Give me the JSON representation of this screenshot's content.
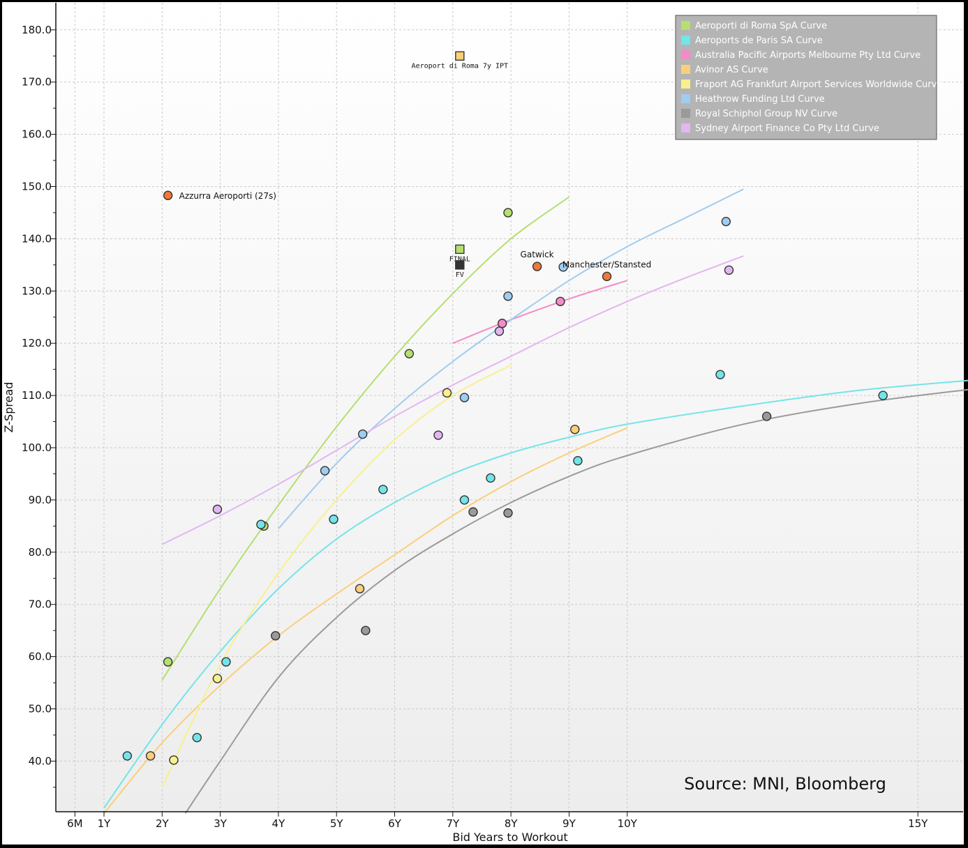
{
  "chart_data": {
    "type": "scatter",
    "xlabel": "Bid Years to Workout",
    "ylabel": "Z-Spread",
    "xlim": [
      0.3,
      16.3
    ],
    "ylim": [
      30.0,
      183.0
    ],
    "x_ticks": [
      {
        "label": "6M",
        "value": 0.5
      },
      {
        "label": "1Y",
        "value": 1
      },
      {
        "label": "2Y",
        "value": 2
      },
      {
        "label": "3Y",
        "value": 3
      },
      {
        "label": "4Y",
        "value": 4
      },
      {
        "label": "5Y",
        "value": 5
      },
      {
        "label": "6Y",
        "value": 6
      },
      {
        "label": "7Y",
        "value": 7
      },
      {
        "label": "8Y",
        "value": 8
      },
      {
        "label": "9Y",
        "value": 9
      },
      {
        "label": "10Y",
        "value": 10
      },
      {
        "label": "15Y",
        "value": 15
      }
    ],
    "y_ticks": [
      "40.0",
      "50.0",
      "60.0",
      "70.0",
      "80.0",
      "90.0",
      "100.0",
      "110.0",
      "120.0",
      "130.0",
      "140.0",
      "150.0",
      "160.0",
      "170.0",
      "180.0"
    ],
    "grid": true,
    "legend_position": "top-right",
    "series": [
      {
        "name": "Aeroporti di Roma SpA Curve",
        "color": "#b5df6e",
        "points": [
          [
            2.1,
            59
          ],
          [
            3.75,
            85
          ],
          [
            6.25,
            118
          ],
          [
            7.95,
            145
          ]
        ],
        "curve": [
          [
            2.0,
            55.5
          ],
          [
            3.0,
            73
          ],
          [
            4.0,
            89
          ],
          [
            5.0,
            104
          ],
          [
            6.0,
            117.5
          ],
          [
            7.0,
            129.5
          ],
          [
            8.0,
            140
          ],
          [
            9.0,
            148
          ]
        ]
      },
      {
        "name": "Aeroports de Paris SA Curve",
        "color": "#74e4e8",
        "points": [
          [
            1.4,
            41
          ],
          [
            2.6,
            44.5
          ],
          [
            3.1,
            59
          ],
          [
            3.7,
            85.3
          ],
          [
            4.95,
            86.3
          ],
          [
            5.8,
            92
          ],
          [
            7.2,
            90
          ],
          [
            7.65,
            94.2
          ],
          [
            9.15,
            97.5
          ],
          [
            11.6,
            114
          ],
          [
            14.4,
            110
          ]
        ],
        "curve": [
          [
            1.0,
            31
          ],
          [
            2.0,
            47
          ],
          [
            3.0,
            61
          ],
          [
            4.0,
            73
          ],
          [
            5.0,
            82.5
          ],
          [
            6.0,
            89.5
          ],
          [
            7.0,
            95
          ],
          [
            8.0,
            99
          ],
          [
            9.0,
            102
          ],
          [
            10.0,
            104.5
          ],
          [
            12.0,
            108
          ],
          [
            14.0,
            111
          ],
          [
            16.0,
            113
          ]
        ]
      },
      {
        "name": "Australia Pacific Airports Melbourne Pty Ltd Curve",
        "color": "#f48ac8",
        "points": [
          [
            7.85,
            123.8
          ],
          [
            8.85,
            128
          ]
        ],
        "curve": [
          [
            7.0,
            120
          ],
          [
            8.0,
            124.5
          ],
          [
            9.0,
            128.5
          ],
          [
            10.0,
            132
          ]
        ]
      },
      {
        "name": "Avinor AS Curve",
        "color": "#fbcf7a",
        "points": [
          [
            1.8,
            41
          ],
          [
            5.4,
            73
          ],
          [
            9.1,
            103.5
          ]
        ],
        "curve": [
          [
            1.0,
            30
          ],
          [
            2.0,
            43.5
          ],
          [
            3.0,
            54.5
          ],
          [
            4.0,
            64
          ],
          [
            5.0,
            72
          ],
          [
            6.0,
            79.5
          ],
          [
            7.0,
            87
          ],
          [
            8.0,
            93.5
          ],
          [
            9.0,
            99
          ],
          [
            10.0,
            103.8
          ]
        ]
      },
      {
        "name": "Fraport AG Frankfurt Airport Services Worldwide Curve",
        "color": "#f8f08c",
        "points": [
          [
            2.2,
            40.2
          ],
          [
            2.95,
            55.8
          ],
          [
            6.9,
            110.5
          ]
        ],
        "curve": [
          [
            2.0,
            35
          ],
          [
            3.0,
            58.5
          ],
          [
            4.0,
            76
          ],
          [
            5.0,
            90
          ],
          [
            6.0,
            101.5
          ],
          [
            7.0,
            110
          ],
          [
            8.0,
            115.8
          ]
        ]
      },
      {
        "name": "Heathrow Funding Ltd Curve",
        "color": "#a0ccf0",
        "points": [
          [
            4.8,
            95.6
          ],
          [
            5.45,
            102.6
          ],
          [
            7.2,
            109.6
          ],
          [
            7.95,
            129
          ],
          [
            8.9,
            134.6
          ],
          [
            11.7,
            143.3
          ]
        ],
        "curve": [
          [
            4.0,
            84.5
          ],
          [
            5.0,
            97
          ],
          [
            6.0,
            107.5
          ],
          [
            7.0,
            116.5
          ],
          [
            8.0,
            124.5
          ],
          [
            9.0,
            132
          ],
          [
            10.0,
            138.5
          ],
          [
            11.0,
            144
          ],
          [
            12.0,
            149.5
          ]
        ]
      },
      {
        "name": "Royal Schiphol Group NV Curve",
        "color": "#9a9a9a",
        "points": [
          [
            3.95,
            64
          ],
          [
            5.5,
            65
          ],
          [
            7.35,
            87.7
          ],
          [
            7.95,
            87.5
          ],
          [
            12.4,
            106
          ]
        ],
        "curve": [
          [
            2.4,
            30
          ],
          [
            3.0,
            40
          ],
          [
            4.0,
            56
          ],
          [
            5.0,
            67.5
          ],
          [
            6.0,
            76.5
          ],
          [
            7.0,
            83.5
          ],
          [
            8.0,
            89.5
          ],
          [
            9.0,
            94.5
          ],
          [
            10.0,
            98.5
          ],
          [
            12.0,
            104.5
          ],
          [
            14.0,
            108.5
          ],
          [
            16.0,
            111.3
          ]
        ]
      },
      {
        "name": "Sydney Airport Finance Co Pty Ltd Curve",
        "color": "#e2b6f0",
        "points": [
          [
            2.95,
            88.2
          ],
          [
            6.75,
            102.4
          ],
          [
            7.8,
            122.3
          ],
          [
            11.75,
            134
          ]
        ],
        "curve": [
          [
            2.0,
            81.5
          ],
          [
            3.0,
            87
          ],
          [
            4.0,
            93
          ],
          [
            5.0,
            99.5
          ],
          [
            6.0,
            106
          ],
          [
            7.0,
            112
          ],
          [
            8.0,
            117.5
          ],
          [
            9.0,
            123
          ],
          [
            10.0,
            128
          ],
          [
            11.0,
            132.5
          ],
          [
            12.0,
            136.7
          ]
        ]
      }
    ],
    "highlight_points": [
      {
        "label": "Azzurra Aeroporti (27s)",
        "x": 2.1,
        "y": 148.3,
        "color": "#f07838"
      },
      {
        "label": "Gatwick",
        "x": 8.45,
        "y": 134.7,
        "color": "#f07838"
      },
      {
        "label": "Manchester/Stansted",
        "x": 9.65,
        "y": 132.8,
        "color": "#f07838"
      }
    ],
    "square_markers": [
      {
        "label": "Aeroport di Roma 7y IPT",
        "x": 7.12,
        "y": 175,
        "color": "#fbcf7a"
      },
      {
        "label": "FINAL",
        "x": 7.12,
        "y": 138,
        "color": "#b5df6e"
      },
      {
        "label": "FV",
        "x": 7.12,
        "y": 135,
        "color": "#333333"
      }
    ],
    "annotations": [
      {
        "text": "Source: MNI, Bloomberg"
      }
    ]
  }
}
